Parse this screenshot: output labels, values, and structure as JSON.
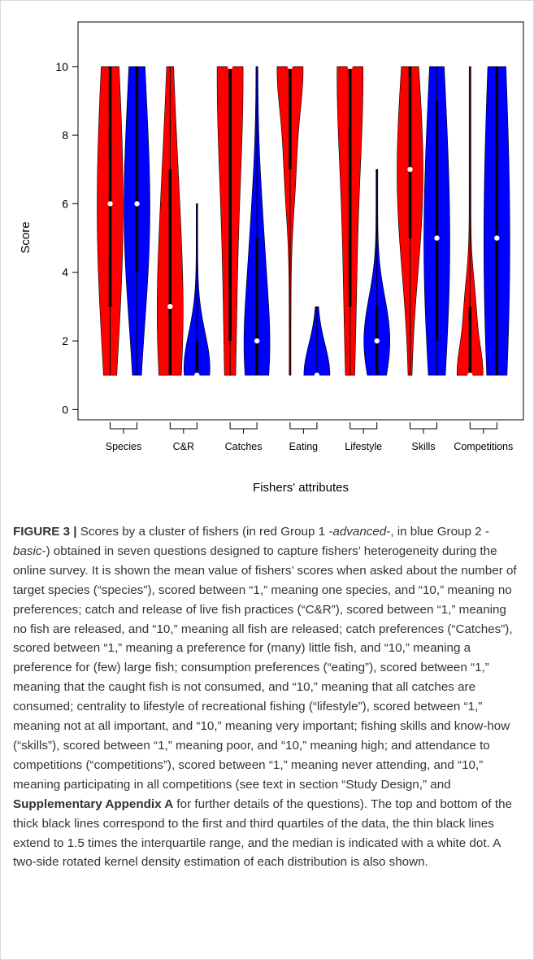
{
  "chart_data": {
    "type": "violin",
    "ylabel": "Score",
    "xlabel": "Fishers' attributes",
    "ylim": [
      -0.3,
      11.3
    ],
    "yticks": [
      0,
      2,
      4,
      6,
      8,
      10
    ],
    "grid": false,
    "categories": [
      "Species",
      "C&R",
      "Catches",
      "Eating",
      "Lifestyle",
      "Skills",
      "Competitions"
    ],
    "series": [
      {
        "group": "Group 1",
        "color": "#ff0000",
        "min": [
          1,
          1,
          1,
          1,
          1,
          1,
          1
        ],
        "q1": [
          3,
          1,
          2,
          7,
          3,
          5,
          1
        ],
        "median": [
          6,
          3,
          10,
          10,
          10,
          7,
          1
        ],
        "q3": [
          10,
          7,
          10,
          10,
          10,
          10,
          3
        ],
        "max": [
          10,
          10,
          10,
          10,
          10,
          10,
          10
        ],
        "mean": [
          6,
          3,
          10,
          10,
          10,
          7,
          1
        ]
      },
      {
        "group": "Group 2",
        "color": "#0000ff",
        "min": [
          1,
          1,
          1,
          1,
          1,
          1,
          1
        ],
        "q1": [
          4,
          1,
          1,
          1,
          1,
          2,
          1
        ],
        "median": [
          6,
          1,
          2,
          1,
          2,
          5,
          5
        ],
        "q3": [
          10,
          2,
          5,
          1,
          3,
          9,
          10
        ],
        "max": [
          10,
          6,
          10,
          3,
          7,
          10,
          10
        ],
        "mean": [
          6,
          1,
          2,
          1,
          2,
          5,
          5
        ]
      }
    ]
  },
  "caption": {
    "label": "FIGURE 3",
    "separator": "|",
    "t1": " Scores by a cluster of fishers (in red Group 1 -",
    "advanced": "advanced",
    "t2": "-, in blue Group 2 -",
    "basic": "basic",
    "t3": "-) obtained in seven questions designed to capture fishers’ heterogeneity during the online survey. It is shown the mean value of fishers’ scores when asked about the number of target species (“species”), scored between “1,” meaning one species, and “10,” meaning no preferences; catch and release of live fish practices (“C&R”), scored between “1,” meaning no fish are released, and “10,” meaning all fish are released; catch preferences (“Catches”), scored between “1,” meaning a preference for (many) little fish, and “10,” meaning a preference for (few) large fish; consumption preferences (“eating”), scored between “1,” meaning that the caught fish is not consumed, and “10,” meaning that all catches are consumed; centrality to lifestyle of recreational fishing (“lifestyle”), scored between “1,” meaning not at all important, and “10,” meaning very important; fishing skills and know-how (“skills”), scored between “1,” meaning poor, and “10,” meaning high; and attendance to competitions (“competitions”), scored between “1,” meaning never attending, and “10,” meaning participating in all competitions (see text in section “Study Design,” and ",
    "supp": "Supplementary Appendix A",
    "t4": " for further details of the questions). The top and bottom of the thick black lines correspond to the first and third quartiles of the data, the thin black lines extend to 1.5 times the interquartile range, and the median is indicated with a white dot. A two-side rotated kernel density estimation of each distribution is also shown."
  }
}
